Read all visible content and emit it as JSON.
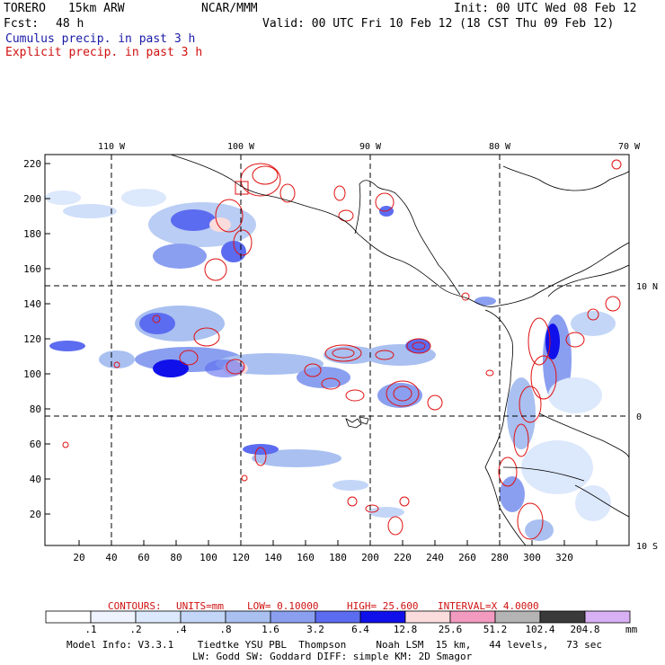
{
  "header": {
    "model": "TORERO",
    "resolution": "15km ARW",
    "center": "NCAR/MMM",
    "init": "Init: 00 UTC Wed 08 Feb 12",
    "fcst_label": "Fcst:",
    "fcst_hours": "48 h",
    "valid": "Valid: 00 UTC Fri 10 Feb 12 (18 CST Thu 09 Feb 12)",
    "field1": "Cumulus precip. in past 3 h",
    "field2": "Explicit precip. in past 3 h"
  },
  "map": {
    "top_labels": [
      "110 W",
      "100 W",
      "90 W",
      "80 W",
      "70 W"
    ],
    "right_labels": [
      "10 N",
      "0",
      "10 S"
    ],
    "y_ticks": [
      "220",
      "200",
      "180",
      "160",
      "140",
      "120",
      "100",
      "80",
      "60",
      "40",
      "20"
    ],
    "x_ticks": [
      "20",
      "40",
      "60",
      "80",
      "100",
      "120",
      "140",
      "160",
      "180",
      "200",
      "220",
      "240",
      "260",
      "280",
      "300",
      "320"
    ]
  },
  "contours": {
    "label": "CONTOURS:",
    "units": "UNITS=mm",
    "low": "LOW= 0.10000",
    "high": "HIGH= 25.600",
    "interval": "INTERVAL=X 4.0000"
  },
  "colorbar": {
    "labels": [
      ".1",
      ".2",
      ".4",
      ".8",
      "1.6",
      "3.2",
      "6.4",
      "12.8",
      "25.6",
      "51.2",
      "102.4",
      "204.8"
    ],
    "colors": [
      "#ffffff",
      "#eef3fd",
      "#dce8fb",
      "#c3d6f7",
      "#a9c0f1",
      "#8b9ff0",
      "#5c6cf0",
      "#1010ea",
      "#fadcdc",
      "#f29ac0",
      "#b4b4b4",
      "#3a3a3a",
      "#d8b0f4"
    ],
    "unit": "mm"
  },
  "footer": {
    "line1": "Model Info: V3.3.1    Tiedtke YSU PBL  Thompson     Noah LSM  15 km,   44 levels,   73 sec",
    "line2": "LW: Godd SW: Goddard DIFF: simple KM: 2D Smagor"
  }
}
